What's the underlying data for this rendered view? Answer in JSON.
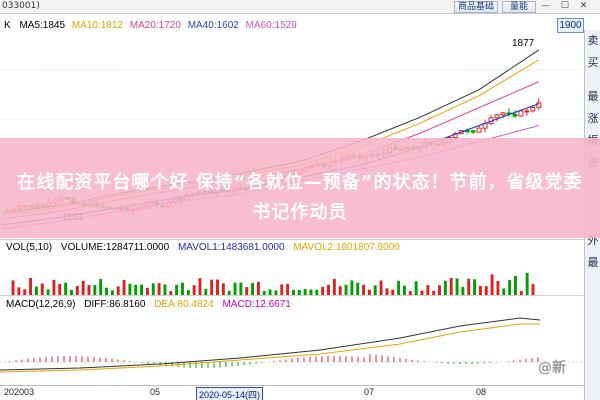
{
  "header": {
    "stock_code": "033001)",
    "btn_goods": "商品基础",
    "btn_vol": "量能",
    "win_controls": "— ☐ ✕"
  },
  "indicators": {
    "k": "K",
    "ma5": "MA5:1845",
    "ma10": "MA10:1812",
    "ma20": "MA20:1720",
    "ma40": "MA40:1602",
    "ma60": "MA60:1529"
  },
  "price_box": "1900",
  "high_label": "1877",
  "low_label": "1161",
  "volume": {
    "vol": "VOL(5,10)",
    "volume": "VOLUME:1284711.0000",
    "mavol1": "MAVOL1:1483681.0000",
    "mavol2": "MAVOL2:1801807.8000"
  },
  "macd": {
    "label": "MACD(12,26,9)",
    "diff": "DIFF:86.8160",
    "dea": "DEA:80.4824",
    "macd": "MACD:12.6671"
  },
  "xaxis": {
    "t1": "202003",
    "t2": "05",
    "selected": "2020-05-14(四)",
    "t3": "07",
    "t4": "08"
  },
  "sidebar": {
    "tabs": [
      "卖",
      "买",
      "最",
      "涨",
      "振",
      "涨",
      "外",
      "最"
    ]
  },
  "overlay": {
    "headline": "在线配资平台哪个好 保持“各就位—预备”的状态！节前，省级党委书记作动员"
  },
  "watermark": "@新",
  "colors": {
    "ma5": "#000000",
    "ma10": "#e8a400",
    "ma20": "#e0409a",
    "ma40": "#2248c8",
    "ma60": "#d050c8",
    "candle_up": "#e02020",
    "candle_down": "#00a000"
  }
}
